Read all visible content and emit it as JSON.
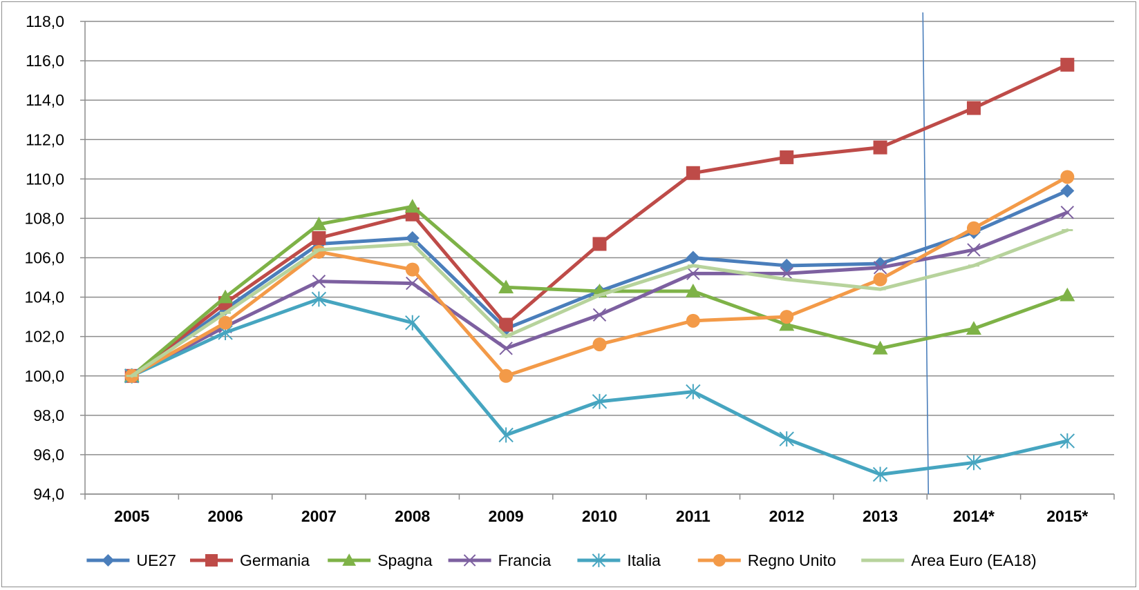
{
  "chart_data": {
    "type": "line",
    "title": "",
    "xlabel": "",
    "ylabel": "",
    "categories": [
      "2005",
      "2006",
      "2007",
      "2008",
      "2009",
      "2010",
      "2011",
      "2012",
      "2013",
      "2014*",
      "2015*"
    ],
    "y_ticks": [
      "94,0",
      "96,0",
      "98,0",
      "100,0",
      "102,0",
      "104,0",
      "106,0",
      "108,0",
      "110,0",
      "112,0",
      "114,0",
      "116,0",
      "118,0"
    ],
    "ylim": [
      94,
      118
    ],
    "grid": true,
    "legend_position": "bottom",
    "forecast_divider_after": "2013",
    "series": [
      {
        "name": "UE27",
        "color": "#4a7ebb",
        "marker": "diamond",
        "values": [
          100.0,
          103.4,
          106.7,
          107.0,
          102.4,
          104.3,
          106.0,
          105.6,
          105.7,
          107.3,
          109.4
        ]
      },
      {
        "name": "Germania",
        "color": "#be4b48",
        "marker": "square",
        "values": [
          100.0,
          103.7,
          107.0,
          108.2,
          102.6,
          106.7,
          110.3,
          111.1,
          111.6,
          113.6,
          115.8
        ]
      },
      {
        "name": "Spagna",
        "color": "#7eb247",
        "marker": "triangle",
        "values": [
          100.0,
          104.0,
          107.7,
          108.6,
          104.5,
          104.3,
          104.3,
          102.6,
          101.4,
          102.4,
          104.1
        ]
      },
      {
        "name": "Francia",
        "color": "#7d60a0",
        "marker": "x",
        "values": [
          100.0,
          102.5,
          104.8,
          104.7,
          101.4,
          103.1,
          105.2,
          105.2,
          105.5,
          106.4,
          108.3
        ]
      },
      {
        "name": "Italia",
        "color": "#46a5c0",
        "marker": "star",
        "values": [
          100.0,
          102.2,
          103.9,
          102.7,
          97.0,
          98.7,
          99.2,
          96.8,
          95.0,
          95.6,
          96.7
        ]
      },
      {
        "name": "Regno Unito",
        "color": "#f39a48",
        "marker": "circle",
        "values": [
          100.0,
          102.7,
          106.3,
          105.4,
          100.0,
          101.6,
          102.8,
          103.0,
          104.9,
          107.5,
          110.1
        ]
      },
      {
        "name": "Area Euro (EA18)",
        "color": "#b7d39c",
        "marker": "dash",
        "values": [
          100.0,
          103.2,
          106.4,
          106.7,
          102.0,
          104.1,
          105.6,
          104.9,
          104.4,
          105.6,
          107.4
        ]
      }
    ]
  }
}
